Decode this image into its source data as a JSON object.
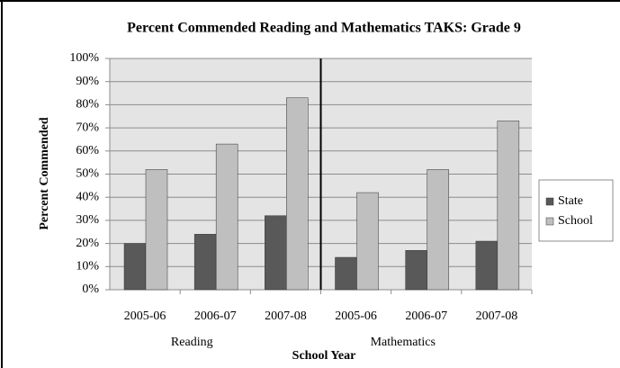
{
  "chart_data": {
    "type": "bar",
    "title": "Percent Commended Reading and Mathematics TAKS: Grade 9",
    "x_label": "School Year",
    "y_label": "Percent Commended",
    "categories": [
      "2005-06",
      "2006-07",
      "2007-08",
      "2005-06",
      "2006-07",
      "2007-08"
    ],
    "groups": [
      "Reading",
      "Mathematics"
    ],
    "series": [
      {
        "name": "State",
        "color": "#595959",
        "values": [
          20,
          24,
          32,
          14,
          17,
          21
        ]
      },
      {
        "name": "School",
        "color": "#bfbfbf",
        "values": [
          52,
          63,
          83,
          42,
          52,
          73
        ]
      }
    ],
    "ylim": [
      0,
      100
    ],
    "yticks": [
      {
        "value": 0,
        "label": "0%"
      },
      {
        "value": 10,
        "label": "10%"
      },
      {
        "value": 20,
        "label": "20%"
      },
      {
        "value": 30,
        "label": "30%"
      },
      {
        "value": 40,
        "label": "40%"
      },
      {
        "value": 50,
        "label": "50%"
      },
      {
        "value": 60,
        "label": "60%"
      },
      {
        "value": 70,
        "label": "70%"
      },
      {
        "value": 80,
        "label": "80%"
      },
      {
        "value": 90,
        "label": "90%"
      },
      {
        "value": 100,
        "label": "100%"
      }
    ],
    "grid": true,
    "legend": "right"
  }
}
